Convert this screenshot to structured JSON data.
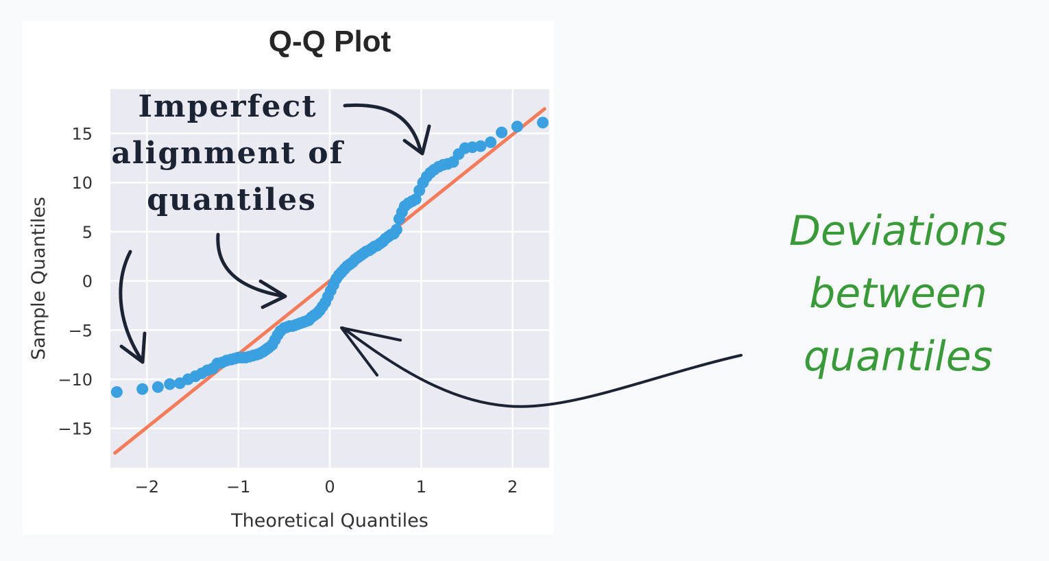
{
  "chart_data": {
    "type": "scatter",
    "title": "Q-Q Plot",
    "xlabel": "Theoretical Quantiles",
    "ylabel": "Sample Quantiles",
    "xlim": [
      -2.4,
      2.4
    ],
    "ylim": [
      -19,
      19.5
    ],
    "xticks": [
      -2,
      -1,
      0,
      1,
      2
    ],
    "xtick_labels": [
      "−2",
      "−1",
      "0",
      "1",
      "2"
    ],
    "yticks": [
      -15,
      -10,
      -5,
      0,
      5,
      10,
      15
    ],
    "ytick_labels": [
      "−15",
      "−10",
      "−5",
      "0",
      "5",
      "10",
      "15"
    ],
    "grid": true,
    "background": "#eaeaf2",
    "points_color": "#3aa0e0",
    "line_color": "#f47c5a",
    "reference_line": {
      "x": [
        -2.35,
        2.35
      ],
      "y": [
        -17.5,
        17.5
      ]
    },
    "points": [
      [
        -2.33,
        -11.3
      ],
      [
        -2.05,
        -11.0
      ],
      [
        -1.88,
        -10.8
      ],
      [
        -1.75,
        -10.5
      ],
      [
        -1.64,
        -10.4
      ],
      [
        -1.55,
        -10.0
      ],
      [
        -1.47,
        -9.7
      ],
      [
        -1.4,
        -9.4
      ],
      [
        -1.34,
        -9.1
      ],
      [
        -1.28,
        -8.9
      ],
      [
        -1.23,
        -8.4
      ],
      [
        -1.18,
        -8.3
      ],
      [
        -1.13,
        -8.1
      ],
      [
        -1.08,
        -8.0
      ],
      [
        -1.04,
        -7.9
      ],
      [
        -1.0,
        -7.8
      ],
      [
        -0.96,
        -7.8
      ],
      [
        -0.92,
        -7.8
      ],
      [
        -0.88,
        -7.7
      ],
      [
        -0.84,
        -7.6
      ],
      [
        -0.8,
        -7.5
      ],
      [
        -0.77,
        -7.4
      ],
      [
        -0.73,
        -7.2
      ],
      [
        -0.7,
        -7.0
      ],
      [
        -0.67,
        -6.8
      ],
      [
        -0.63,
        -6.5
      ],
      [
        -0.6,
        -6.0
      ],
      [
        -0.57,
        -5.5
      ],
      [
        -0.54,
        -5.1
      ],
      [
        -0.5,
        -4.8
      ],
      [
        -0.47,
        -4.7
      ],
      [
        -0.44,
        -4.6
      ],
      [
        -0.41,
        -4.6
      ],
      [
        -0.38,
        -4.5
      ],
      [
        -0.35,
        -4.4
      ],
      [
        -0.32,
        -4.3
      ],
      [
        -0.29,
        -4.2
      ],
      [
        -0.26,
        -4.1
      ],
      [
        -0.23,
        -4.0
      ],
      [
        -0.2,
        -3.7
      ],
      [
        -0.17,
        -3.5
      ],
      [
        -0.14,
        -3.3
      ],
      [
        -0.11,
        -3.0
      ],
      [
        -0.08,
        -2.6
      ],
      [
        -0.05,
        -2.2
      ],
      [
        -0.02,
        -1.6
      ],
      [
        0.01,
        -1.0
      ],
      [
        0.04,
        -0.4
      ],
      [
        0.07,
        0.2
      ],
      [
        0.1,
        0.6
      ],
      [
        0.13,
        0.9
      ],
      [
        0.16,
        1.2
      ],
      [
        0.19,
        1.5
      ],
      [
        0.22,
        1.7
      ],
      [
        0.25,
        1.9
      ],
      [
        0.28,
        2.2
      ],
      [
        0.31,
        2.4
      ],
      [
        0.34,
        2.6
      ],
      [
        0.37,
        2.8
      ],
      [
        0.4,
        3.0
      ],
      [
        0.43,
        3.1
      ],
      [
        0.46,
        3.3
      ],
      [
        0.49,
        3.5
      ],
      [
        0.52,
        3.6
      ],
      [
        0.55,
        3.8
      ],
      [
        0.58,
        4.0
      ],
      [
        0.61,
        4.3
      ],
      [
        0.64,
        4.5
      ],
      [
        0.67,
        4.7
      ],
      [
        0.7,
        4.8
      ],
      [
        0.73,
        5.2
      ],
      [
        0.76,
        6.3
      ],
      [
        0.79,
        7.0
      ],
      [
        0.82,
        7.6
      ],
      [
        0.86,
        7.9
      ],
      [
        0.9,
        8.1
      ],
      [
        0.94,
        8.3
      ],
      [
        0.98,
        9.2
      ],
      [
        1.02,
        10.0
      ],
      [
        1.06,
        10.6
      ],
      [
        1.1,
        11.0
      ],
      [
        1.14,
        11.3
      ],
      [
        1.19,
        11.6
      ],
      [
        1.24,
        11.8
      ],
      [
        1.29,
        11.9
      ],
      [
        1.35,
        12.1
      ],
      [
        1.41,
        12.9
      ],
      [
        1.48,
        13.5
      ],
      [
        1.56,
        13.6
      ],
      [
        1.65,
        13.7
      ],
      [
        1.76,
        14.1
      ],
      [
        1.88,
        15.1
      ],
      [
        2.05,
        15.7
      ],
      [
        2.33,
        16.1
      ]
    ]
  },
  "annotations": {
    "left_note": [
      "Imperfect",
      "alignment of",
      "quantiles"
    ],
    "right_note": [
      "Deviations",
      "between",
      "quantiles"
    ]
  },
  "colors": {
    "annotation_dark": "#1c2333",
    "annotation_green": "#3a9a3a"
  }
}
